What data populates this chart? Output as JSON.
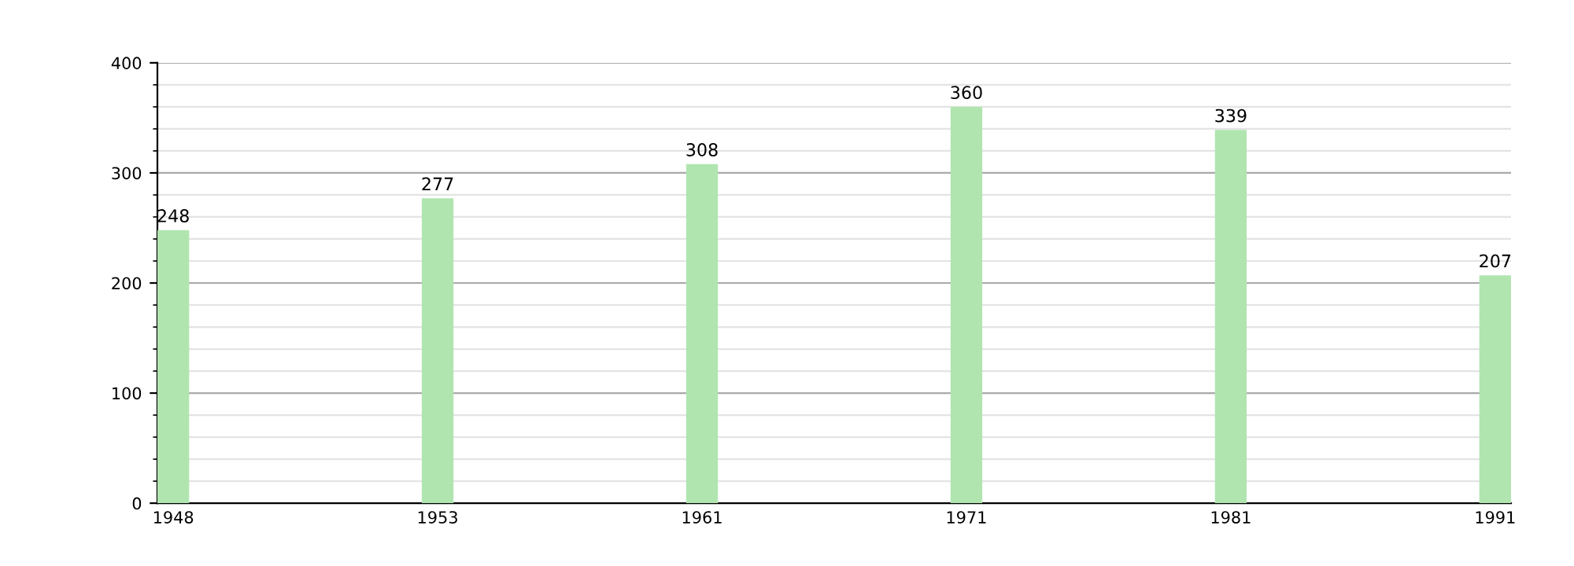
{
  "chart_data": {
    "type": "bar",
    "categories": [
      "1948",
      "1953",
      "1961",
      "1971",
      "1981",
      "1991"
    ],
    "values": [
      248,
      277,
      308,
      360,
      339,
      207
    ],
    "color": "#b0e5b0",
    "ylim": [
      0,
      400
    ],
    "yticks": [
      0,
      100,
      200,
      300,
      400
    ],
    "grid": "y",
    "data_labels": true
  }
}
